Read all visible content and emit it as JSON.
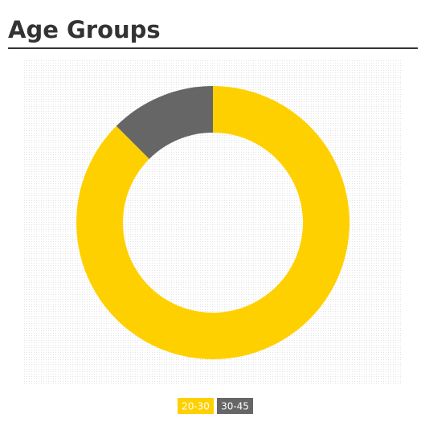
{
  "chart_data": {
    "type": "pie",
    "title": "Age Groups",
    "categories": [
      "20-30",
      "30-45"
    ],
    "values": [
      87.5,
      12.5
    ],
    "colors": [
      "#ffd000",
      "#666666"
    ]
  }
}
